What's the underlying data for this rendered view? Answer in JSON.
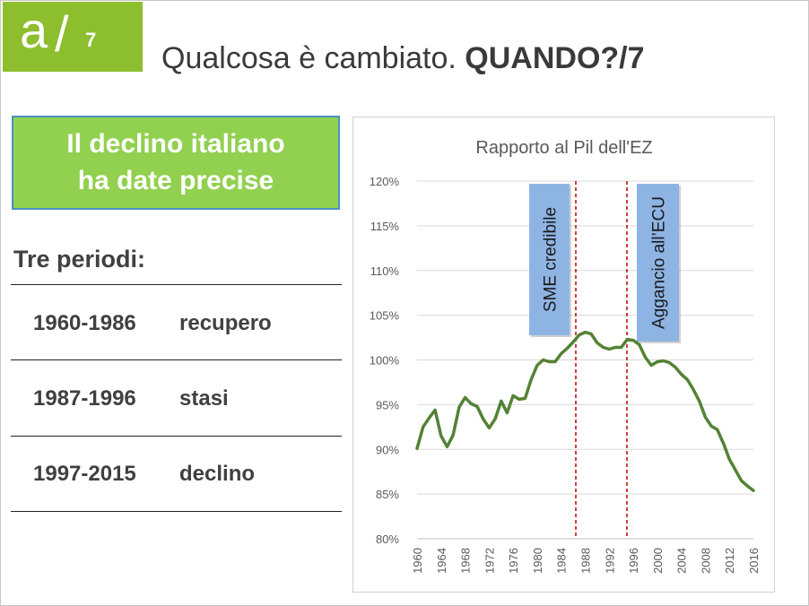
{
  "logo": {
    "letter": "a",
    "slash": "/",
    "number": "7"
  },
  "title": {
    "normal": "Qualcosa è cambiato. ",
    "bold": "QUANDO?/7"
  },
  "callout": {
    "line1": "Il declino italiano",
    "line2": "ha date precise"
  },
  "periods_heading": "Tre periodi:",
  "periods": [
    {
      "years": "1960-1986",
      "label": "recupero"
    },
    {
      "years": "1987-1996",
      "label": "stasi"
    },
    {
      "years": "1997-2015",
      "label": "declino"
    }
  ],
  "colors": {
    "accent_green": "#8cbe2e",
    "callout_green": "#92d050",
    "line": "#548235",
    "marker_blue": "#8eb4e3",
    "dashed_red": "#c00000"
  },
  "chart_data": {
    "type": "line",
    "title": "Rapporto al Pil dell'EZ",
    "xlabel": "",
    "ylabel": "",
    "ylim": [
      0.8,
      1.2
    ],
    "yticks": [
      "80%",
      "85%",
      "90%",
      "95%",
      "100%",
      "105%",
      "110%",
      "115%",
      "120%"
    ],
    "xticks": [
      "1960",
      "1964",
      "1968",
      "1972",
      "1976",
      "1980",
      "1984",
      "1988",
      "1992",
      "1996",
      "2000",
      "2004",
      "2008",
      "2012",
      "2016"
    ],
    "grid": true,
    "x": [
      1960,
      1961,
      1962,
      1963,
      1964,
      1965,
      1966,
      1967,
      1968,
      1969,
      1970,
      1971,
      1972,
      1973,
      1974,
      1975,
      1976,
      1977,
      1978,
      1979,
      1980,
      1981,
      1982,
      1983,
      1984,
      1985,
      1986,
      1987,
      1988,
      1989,
      1990,
      1991,
      1992,
      1993,
      1994,
      1995,
      1996,
      1997,
      1998,
      1999,
      2000,
      2001,
      2002,
      2003,
      2004,
      2005,
      2006,
      2007,
      2008,
      2009,
      2010,
      2011,
      2012,
      2013,
      2014,
      2015,
      2016
    ],
    "series": [
      {
        "values": [
          0.901,
          0.925,
          0.935,
          0.944,
          0.915,
          0.903,
          0.916,
          0.947,
          0.958,
          0.951,
          0.948,
          0.934,
          0.924,
          0.934,
          0.954,
          0.941,
          0.96,
          0.956,
          0.957,
          0.978,
          0.994,
          1.0,
          0.998,
          0.998,
          1.007,
          1.013,
          1.02,
          1.028,
          1.031,
          1.029,
          1.019,
          1.014,
          1.012,
          1.014,
          1.014,
          1.023,
          1.022,
          1.017,
          1.003,
          0.994,
          0.998,
          0.999,
          0.997,
          0.992,
          0.984,
          0.978,
          0.967,
          0.954,
          0.936,
          0.926,
          0.922,
          0.907,
          0.889,
          0.877,
          0.865,
          0.859,
          0.854
        ]
      }
    ],
    "annotations": [
      {
        "text": "SME credibile",
        "x": 1987
      },
      {
        "text": "Aggancio all’ECU",
        "x": 1995
      }
    ]
  }
}
